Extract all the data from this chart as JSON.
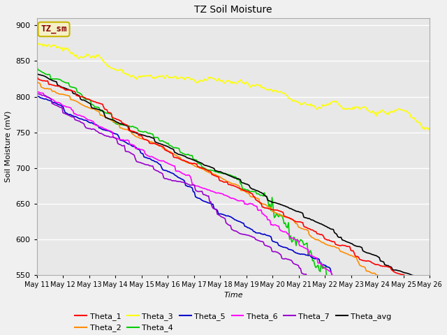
{
  "title": "TZ Soil Moisture",
  "xlabel": "Time",
  "ylabel": "Soil Moisture (mV)",
  "ylim": [
    550,
    910
  ],
  "background_color": "#f0f0f0",
  "plot_bg_color": "#e8e8e8",
  "legend_label": "TZ_sm",
  "legend_box_color": "#f5f0c8",
  "legend_box_edge": "#c8b400",
  "legend_text_color": "#8b0000",
  "colors": {
    "Theta_1": "#ff0000",
    "Theta_2": "#ff8c00",
    "Theta_3": "#ffff00",
    "Theta_4": "#00cc00",
    "Theta_5": "#0000cc",
    "Theta_6": "#ff00ff",
    "Theta_7": "#9900cc",
    "Theta_avg": "#000000"
  },
  "x_tick_labels": [
    "May 11",
    "May 12",
    "May 13",
    "May 14",
    "May 15",
    "May 16",
    "May 17",
    "May 18",
    "May 19",
    "May 20",
    "May 21",
    "May 22",
    "May 23",
    "May 24",
    "May 25",
    "May 26"
  ]
}
